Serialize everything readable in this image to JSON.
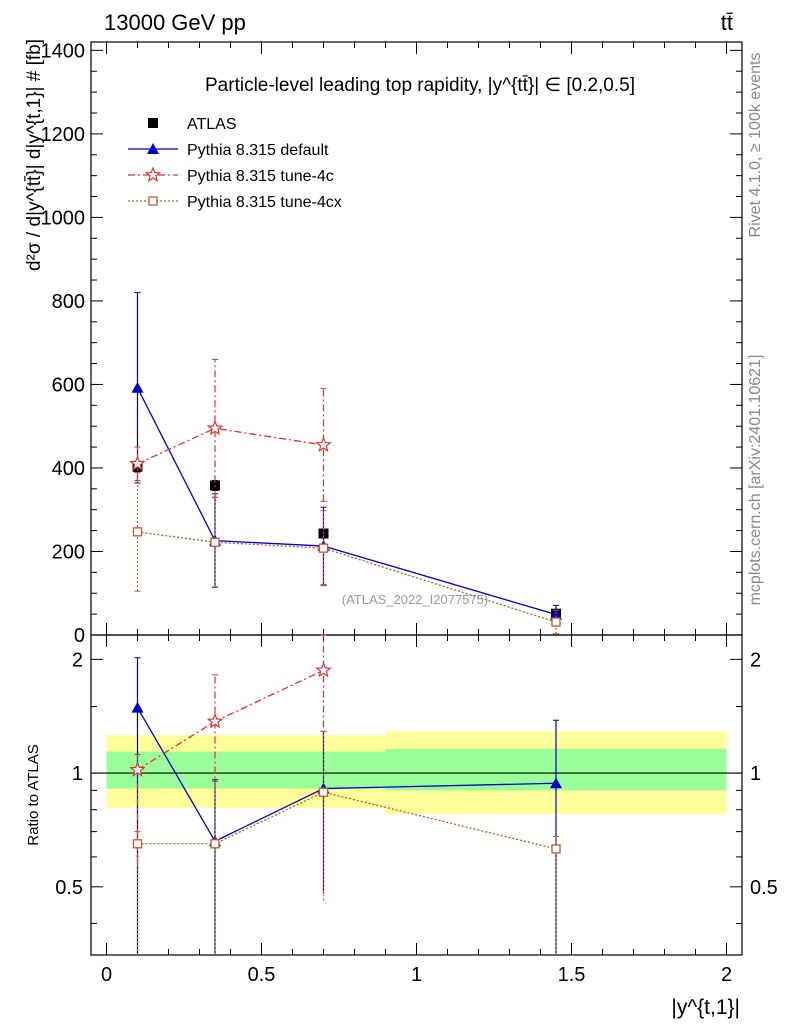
{
  "header": {
    "energy_label": "13000 GeV pp",
    "process_label": "tt̄"
  },
  "side_labels": {
    "rivet": "Rivet 4.1.0, ≥ 100k events",
    "mcplots": "mcplots.cern.ch [arXiv:2401.10621]"
  },
  "chart_data": {
    "type": "scatter",
    "title": "Particle-level leading top rapidity, |y^{tt̄}| ∈ [0.2,0.5]",
    "xlabel": "|y^{t,1}|",
    "ylabel": "d²σ / d|y^{tt̄}| d|y^{t,1}| # [fb]",
    "ratio_ylabel": "Ratio to ATLAS",
    "watermark": "(ATLAS_2022_I2077575)",
    "xlim": [
      -0.05,
      2.05
    ],
    "ylim": [
      0,
      1420
    ],
    "ratio_ylim": [
      0.33,
      2.32
    ],
    "x_ticks": [
      "0",
      "0.5",
      "1",
      "1.5",
      "2"
    ],
    "y_ticks": [
      "0",
      "200",
      "400",
      "600",
      "800",
      "1000",
      "1200",
      "1400"
    ],
    "ratio_ticks": [
      "0.5",
      "1",
      "2"
    ],
    "band": [
      {
        "x0": 0.0,
        "x1": 0.9,
        "inner_lo": 0.91,
        "inner_hi": 1.14,
        "outer_lo": 0.81,
        "outer_hi": 1.26
      },
      {
        "x0": 0.9,
        "x1": 2.0,
        "inner_lo": 0.9,
        "inner_hi": 1.16,
        "outer_lo": 0.78,
        "outer_hi": 1.29
      }
    ],
    "series": [
      {
        "name": "ATLAS",
        "color": "#000000",
        "marker": "square",
        "x": [
          0.1,
          0.35,
          0.7,
          1.45
        ],
        "values": [
          403,
          358,
          243,
          51
        ],
        "err": [
          12,
          12,
          10,
          8
        ]
      },
      {
        "name": "Pythia 8.315 default",
        "color": "#0000cc",
        "marker": "triangle",
        "x": [
          0.1,
          0.35,
          0.7,
          1.45
        ],
        "values": [
          592,
          226,
          213,
          49
        ],
        "err": [
          228,
          112,
          93,
          22
        ],
        "ratio": [
          1.49,
          0.66,
          0.91,
          0.94
        ],
        "ratio_err_lo": [
          1.49,
          0.66,
          0.43,
          0.94
        ],
        "ratio_err_hi": [
          0.53,
          0.3,
          0.38,
          0.44
        ]
      },
      {
        "name": "Pythia 8.315 tune-4c",
        "color": "#dd3333",
        "marker": "star",
        "x": [
          0.1,
          0.35,
          0.7
        ],
        "values": [
          410,
          495,
          455
        ],
        "err": [
          40,
          165,
          135
        ],
        "ratio": [
          1.02,
          1.37,
          1.87
        ],
        "ratio_err_lo": [
          0.45,
          0.46,
          0.55
        ],
        "ratio_err_hi": [
          0.1,
          0.45,
          0.55
        ]
      },
      {
        "name": "Pythia 8.315 tune-4cx",
        "color": "#c05a28",
        "marker": "open-square",
        "x": [
          0.1,
          0.35,
          0.7,
          1.45
        ],
        "values": [
          247,
          222,
          208,
          31
        ],
        "err": [
          142,
          107,
          90,
          28
        ],
        "ratio": [
          0.65,
          0.65,
          0.89,
          0.63
        ],
        "ratio_err_lo": [
          0.65,
          0.65,
          0.43,
          0.63
        ],
        "ratio_err_hi": [
          0.05,
          0.3,
          0.4,
          0.05
        ]
      }
    ]
  }
}
